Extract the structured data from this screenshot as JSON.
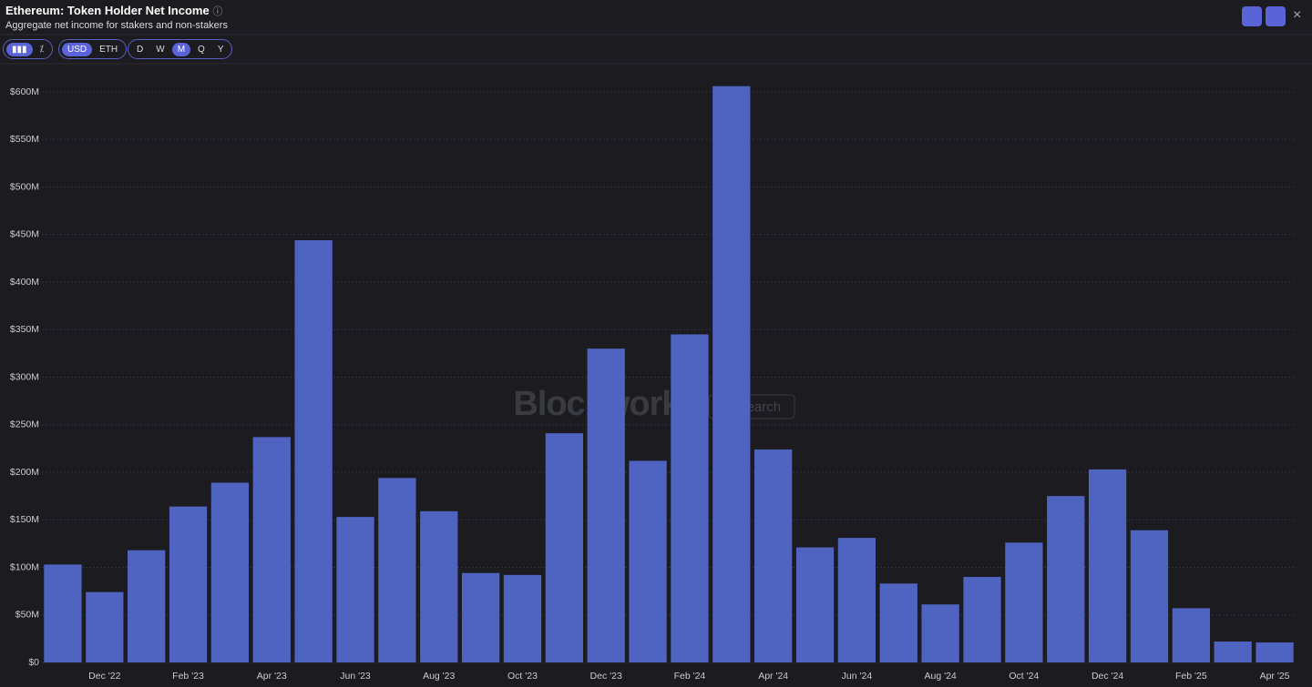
{
  "header": {
    "title": "Ethereum: Token Holder Net Income",
    "subtitle": "Aggregate net income for stakers and non-stakers"
  },
  "toolbar": {
    "currency": [
      "USD",
      "ETH"
    ],
    "periods": [
      "D",
      "W",
      "M",
      "Q",
      "Y"
    ]
  },
  "watermark": {
    "brand": "Blockworks",
    "tag": "Research"
  },
  "chart_data": {
    "type": "bar",
    "categories": [
      null,
      "Dec '22",
      null,
      "Feb '23",
      null,
      "Apr '23",
      null,
      "Jun '23",
      null,
      "Aug '23",
      null,
      "Oct '23",
      null,
      "Dec '23",
      null,
      "Feb '24",
      null,
      "Apr '24",
      null,
      "Jun '24",
      null,
      "Aug '24",
      null,
      "Oct '24",
      null,
      "Dec '24",
      null,
      "Feb '25",
      null,
      "Apr '25"
    ],
    "values": [
      103000000,
      74000000,
      118000000,
      164000000,
      189000000,
      237000000,
      444000000,
      153000000,
      194000000,
      159000000,
      94000000,
      92000000,
      241000000,
      330000000,
      212000000,
      345000000,
      606000000,
      224000000,
      121000000,
      131000000,
      83000000,
      61000000,
      90000000,
      126000000,
      175000000,
      203000000,
      139000000,
      57000000,
      22000000,
      21000000
    ],
    "color": "#4f63c1",
    "ylim": [
      0,
      600000000
    ],
    "yticks": [
      {
        "value": 0,
        "label": "$0"
      },
      {
        "value": 50000000,
        "label": "$50M"
      },
      {
        "value": 100000000,
        "label": "$100M"
      },
      {
        "value": 150000000,
        "label": "$150M"
      },
      {
        "value": 200000000,
        "label": "$200M"
      },
      {
        "value": 250000000,
        "label": "$250M"
      },
      {
        "value": 300000000,
        "label": "$300M"
      },
      {
        "value": 350000000,
        "label": "$350M"
      },
      {
        "value": 400000000,
        "label": "$400M"
      },
      {
        "value": 450000000,
        "label": "$450M"
      },
      {
        "value": 500000000,
        "label": "$500M"
      },
      {
        "value": 550000000,
        "label": "$550M"
      },
      {
        "value": 600000000,
        "label": "$600M"
      }
    ],
    "grid": true
  }
}
